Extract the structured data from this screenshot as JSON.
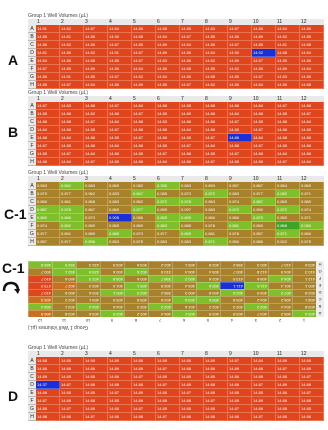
{
  "panels": [
    {
      "label": "A",
      "title": "Group 1 Well Volumes (µL)"
    },
    {
      "label": "B",
      "title": "Group 1 Well Volumes (µL)"
    },
    {
      "label": "C-1",
      "title": "Group 1 Well Volumes (µL)"
    },
    {
      "label": "C-1",
      "title": "Group 1 Well Volumes (µL)"
    },
    {
      "label": "D",
      "title": "Group 1 Well Volumes (µL)"
    }
  ],
  "columns": [
    "1",
    "2",
    "3",
    "4",
    "5",
    "6",
    "7",
    "8",
    "9",
    "10",
    "11",
    "12"
  ],
  "rows": [
    "A",
    "B",
    "C",
    "D",
    "E",
    "F",
    "G",
    "H"
  ],
  "rotated_bottom_labels": [
    "12",
    "11",
    "10",
    "9",
    "8",
    "7",
    "6",
    "5",
    "4",
    "3",
    "2",
    "1"
  ],
  "rotated_row_labels": [
    "H",
    "G",
    "F",
    "E",
    "D",
    "C",
    "B",
    "A"
  ],
  "colors": {
    "red": "#e0461e",
    "blue": "#1a2fd6",
    "green": "#7fbf2a",
    "olive": "#a8822a",
    "orange": "#c8701f"
  },
  "panel_A_values": [
    [
      "14.91",
      "14.82",
      "14.87",
      "14.84",
      "14.86",
      "14.88",
      "14.85",
      "14.83",
      "14.87",
      "14.86",
      "14.84",
      "14.86"
    ],
    [
      "14.85",
      "14.81",
      "14.86",
      "14.90",
      "14.88",
      "14.84",
      "14.87",
      "14.85",
      "14.86",
      "14.89",
      "14.82",
      "14.85"
    ],
    [
      "14.86",
      "14.82",
      "14.86",
      "14.87",
      "14.85",
      "14.89",
      "14.84",
      "14.86",
      "14.87",
      "14.85",
      "14.81",
      "14.88"
    ],
    [
      "14.81",
      "14.86",
      "14.82",
      "14.91",
      "14.87",
      "14.89",
      "14.86",
      "14.84",
      "14.90",
      "14.92",
      "14.88",
      "14.84"
    ],
    [
      "14.84",
      "14.86",
      "14.88",
      "14.85",
      "14.87",
      "14.83",
      "14.86",
      "14.82",
      "14.89",
      "14.87",
      "14.85",
      "14.86"
    ],
    [
      "14.87",
      "14.85",
      "14.89",
      "14.86",
      "14.84",
      "14.86",
      "14.88",
      "14.85",
      "14.82",
      "14.86",
      "14.89",
      "14.84"
    ],
    [
      "14.86",
      "14.91",
      "14.85",
      "14.87",
      "14.82",
      "14.84",
      "14.86",
      "14.88",
      "14.85",
      "14.87",
      "14.83",
      "14.86"
    ],
    [
      "14.85",
      "14.87",
      "14.84",
      "14.86",
      "14.89",
      "14.85",
      "14.87",
      "14.82",
      "14.86",
      "14.84",
      "14.86",
      "14.88"
    ]
  ],
  "panel_B_values": [
    [
      "14.87",
      "14.83",
      "14.86",
      "14.87",
      "14.84",
      "14.86",
      "14.85",
      "14.88",
      "14.86",
      "14.84",
      "14.87",
      "14.86"
    ],
    [
      "14.85",
      "14.86",
      "14.82",
      "14.86",
      "14.87",
      "14.85",
      "14.89",
      "14.86",
      "14.84",
      "14.86",
      "14.85",
      "14.87"
    ],
    [
      "14.86",
      "14.88",
      "14.87",
      "14.84",
      "14.86",
      "14.83",
      "14.86",
      "14.86",
      "14.87",
      "14.85",
      "14.86",
      "14.84"
    ],
    [
      "14.84",
      "14.86",
      "14.85",
      "14.87",
      "14.86",
      "14.88",
      "14.84",
      "14.86",
      "14.85",
      "14.87",
      "14.86",
      "14.85"
    ],
    [
      "14.86",
      "14.84",
      "14.86",
      "14.85",
      "14.87",
      "14.86",
      "14.85",
      "14.87",
      "14.86",
      "14.84",
      "14.88",
      "14.86"
    ],
    [
      "14.87",
      "14.85",
      "14.86",
      "14.84",
      "14.86",
      "14.85",
      "14.87",
      "14.84",
      "14.86",
      "14.87",
      "14.85",
      "14.86"
    ],
    [
      "14.85",
      "14.87",
      "14.84",
      "14.86",
      "14.85",
      "14.87",
      "14.86",
      "14.85",
      "14.87",
      "14.86",
      "14.84",
      "14.86"
    ],
    [
      "14.86",
      "14.84",
      "14.87",
      "14.85",
      "14.86",
      "14.84",
      "14.86",
      "14.87",
      "14.85",
      "14.86",
      "14.87",
      "14.84"
    ]
  ],
  "panel_C1_values": [
    [
      "0.563",
      "0.562",
      "0.883",
      "0.865",
      "0.082",
      "0.336",
      "0.883",
      "0.893",
      "0.897",
      "0.867",
      "0.854",
      "0.865"
    ],
    [
      "0.879",
      "0.877",
      "0.962",
      "0.833",
      "0.847",
      "0.085",
      "0.873",
      "0.872",
      "0.883",
      "0.877",
      "0.082",
      "0.871"
    ],
    [
      "0.866",
      "0.861",
      "0.868",
      "0.883",
      "0.862",
      "0.872",
      "0.878",
      "0.863",
      "0.874",
      "0.887",
      "0.865",
      "0.885"
    ],
    [
      "0.887",
      "0.878",
      "0.867",
      "0.865",
      "0.877",
      "0.895",
      "0.097",
      "0.883",
      "0.870",
      "0.890",
      "0.872",
      "0.874"
    ],
    [
      "0.860",
      "0.866",
      "0.873",
      "0.005",
      "0.086",
      "0.859",
      "0.895",
      "0.866",
      "0.866",
      "0.875",
      "0.855",
      "0.871"
    ],
    [
      "0.874",
      "0.892",
      "0.859",
      "0.865",
      "0.869",
      "0.883",
      "0.888",
      "0.878",
      "0.881",
      "0.860",
      "0.868",
      "0.080"
    ],
    [
      "0.877",
      "0.891",
      "0.889",
      "0.888",
      "0.873",
      "0.877",
      "0.859",
      "0.881",
      "0.878",
      "0.857",
      "0.871",
      "0.866"
    ],
    [
      "0.857",
      "0.877",
      "0.896",
      "0.853",
      "0.875",
      "0.883",
      "0.883",
      "0.871",
      "0.856",
      "0.886",
      "0.822",
      "0.875"
    ]
  ],
  "panel_C1r_values": [
    [
      "465.8",
      "352.9",
      "432.3",
      "403.9",
      "303.6",
      "402.2",
      "405.1",
      "402.8",
      "398.2",
      "400.3",
      "410.7",
      "403.6"
    ],
    [
      "400.7",
      "492.1",
      "429.9",
      "400.6",
      "402.6",
      "310.5",
      "406.4",
      "405.4",
      "400.7",
      "412.8",
      "404.9",
      "410.3"
    ],
    [
      "410.7",
      "460.6",
      "402.3",
      "408.8",
      "400.6",
      "398.7",
      "400.2",
      "402.6",
      "413.9",
      "408.6",
      "404.4",
      "412.1"
    ],
    [
      "479.3",
      "402.7",
      "405.3",
      "401.0",
      "405.1",
      "405.9",
      "405.4",
      "400.6",
      "411.1",
      "411.5",
      "401.4",
      "400.1"
    ],
    [
      "410.7",
      "400.5",
      "309.6",
      "400.1",
      "402.5",
      "398.2",
      "400.3",
      "400.8",
      "402.6",
      "409.0",
      "407.2",
      "302.8"
    ],
    [
      "405.3",
      "402.2",
      "409.1",
      "405.5",
      "409.8",
      "402.8",
      "403.6",
      "400.6",
      "405.8",
      "404.2",
      "406.2",
      "408.1"
    ],
    [
      "406.4",
      "403.1",
      "404.4",
      "404.6",
      "405.3",
      "402.2",
      "401.6",
      "402.2",
      "409.3",
      "402.2",
      "404.4",
      "403.8"
    ],
    [
      "406.9",
      "403.8",
      "403.6",
      "402.5",
      "402.2",
      "406.4",
      "409.1",
      "402.9",
      "403.9",
      "403.7",
      "408.2",
      "409.4"
    ]
  ],
  "panel_D_values": [
    [
      "14.88",
      "14.86",
      "14.90",
      "14.89",
      "14.86",
      "14.88",
      "14.86",
      "14.89",
      "14.87",
      "14.84",
      "14.86",
      "14.88"
    ],
    [
      "14.86",
      "14.88",
      "14.86",
      "14.89",
      "14.85",
      "14.87",
      "14.88",
      "14.86",
      "14.89",
      "14.86",
      "14.87",
      "14.85"
    ],
    [
      "14.89",
      "14.85",
      "14.88",
      "14.86",
      "14.87",
      "14.86",
      "14.89",
      "14.85",
      "14.86",
      "14.88",
      "14.86",
      "14.87"
    ],
    [
      "14.37",
      "14.87",
      "14.86",
      "14.88",
      "14.86",
      "14.87",
      "14.85",
      "14.88",
      "14.86",
      "14.87",
      "14.89",
      "14.86"
    ],
    [
      "14.86",
      "14.88",
      "14.85",
      "14.87",
      "14.89",
      "14.86",
      "14.87",
      "14.86",
      "14.88",
      "14.85",
      "14.86",
      "14.87"
    ],
    [
      "14.87",
      "14.86",
      "14.88",
      "14.85",
      "14.86",
      "14.88",
      "14.86",
      "14.87",
      "14.85",
      "14.89",
      "14.86",
      "14.88"
    ],
    [
      "14.85",
      "14.87",
      "14.86",
      "14.88",
      "14.87",
      "14.85",
      "14.88",
      "14.86",
      "14.87",
      "14.86",
      "14.88",
      "14.85"
    ],
    [
      "14.88",
      "14.86",
      "14.87",
      "14.86",
      "14.88",
      "14.87",
      "14.86",
      "14.88",
      "14.86",
      "14.87",
      "14.85",
      "14.86"
    ]
  ]
}
